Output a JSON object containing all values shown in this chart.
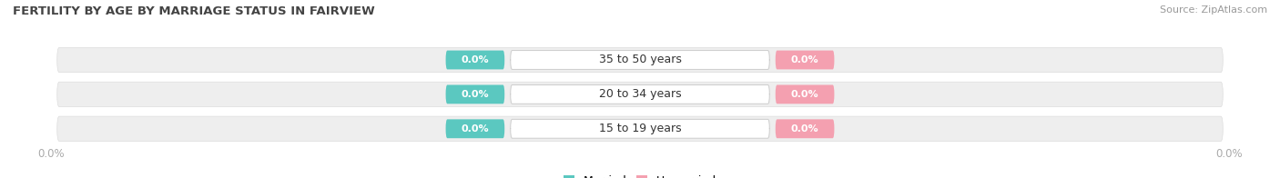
{
  "title": "FERTILITY BY AGE BY MARRIAGE STATUS IN FAIRVIEW",
  "source": "Source: ZipAtlas.com",
  "age_groups": [
    "15 to 19 years",
    "20 to 34 years",
    "35 to 50 years"
  ],
  "married_values": [
    0.0,
    0.0,
    0.0
  ],
  "unmarried_values": [
    0.0,
    0.0,
    0.0
  ],
  "married_color": "#5bc8c0",
  "unmarried_color": "#f4a0b0",
  "row_bg_color": "#eeeeee",
  "row_border_color": "#dddddd",
  "title_color": "#444444",
  "source_color": "#999999",
  "axis_label_color": "#aaaaaa",
  "center_label_color": "#333333",
  "badge_text_color": "#ffffff",
  "figsize": [
    14.06,
    1.96
  ],
  "dpi": 100
}
